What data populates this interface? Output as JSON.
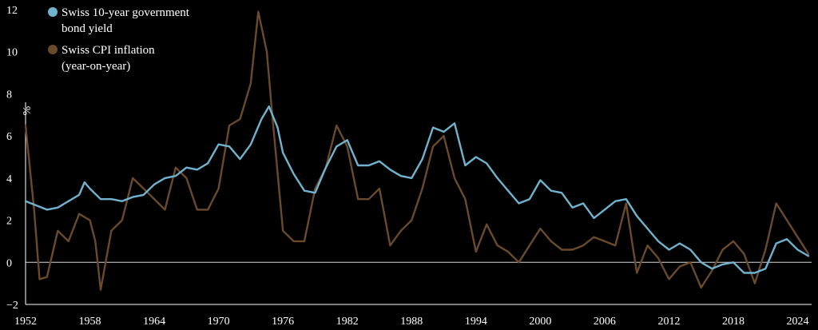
{
  "chart_data": {
    "type": "line",
    "title": "",
    "xlabel": "",
    "ylabel": "%",
    "xlim": [
      1952,
      2025.3
    ],
    "ylim": [
      -2,
      12
    ],
    "x_ticks": [
      1952,
      1958,
      1964,
      1970,
      1976,
      1982,
      1988,
      1994,
      2000,
      2006,
      2012,
      2018,
      2024
    ],
    "y_ticks": [
      -2,
      0,
      2,
      4,
      6,
      8,
      10,
      12
    ],
    "grid": false,
    "legend_position": "top-left",
    "series": [
      {
        "name_lines": [
          "Swiss 10-year government",
          "bond yield"
        ],
        "color": "#6fb3cf",
        "points": [
          [
            1952.0,
            2.9
          ],
          [
            1953.0,
            2.7
          ],
          [
            1954.0,
            2.5
          ],
          [
            1955.0,
            2.6
          ],
          [
            1956.0,
            2.9
          ],
          [
            1957.0,
            3.2
          ],
          [
            1957.5,
            3.8
          ],
          [
            1958.0,
            3.5
          ],
          [
            1959.0,
            3.0
          ],
          [
            1960.0,
            3.0
          ],
          [
            1961.0,
            2.9
          ],
          [
            1962.0,
            3.1
          ],
          [
            1963.0,
            3.2
          ],
          [
            1964.0,
            3.7
          ],
          [
            1965.0,
            4.0
          ],
          [
            1966.0,
            4.1
          ],
          [
            1967.0,
            4.5
          ],
          [
            1968.0,
            4.4
          ],
          [
            1969.0,
            4.7
          ],
          [
            1970.0,
            5.6
          ],
          [
            1971.0,
            5.5
          ],
          [
            1972.0,
            4.9
          ],
          [
            1973.0,
            5.6
          ],
          [
            1974.0,
            6.8
          ],
          [
            1974.7,
            7.4
          ],
          [
            1975.5,
            6.4
          ],
          [
            1976.0,
            5.2
          ],
          [
            1977.0,
            4.2
          ],
          [
            1978.0,
            3.4
          ],
          [
            1979.0,
            3.3
          ],
          [
            1980.0,
            4.5
          ],
          [
            1981.0,
            5.5
          ],
          [
            1982.0,
            5.8
          ],
          [
            1983.0,
            4.6
          ],
          [
            1984.0,
            4.6
          ],
          [
            1985.0,
            4.8
          ],
          [
            1986.0,
            4.4
          ],
          [
            1987.0,
            4.1
          ],
          [
            1988.0,
            4.0
          ],
          [
            1989.0,
            4.9
          ],
          [
            1990.0,
            6.4
          ],
          [
            1991.0,
            6.2
          ],
          [
            1992.0,
            6.6
          ],
          [
            1993.0,
            4.6
          ],
          [
            1994.0,
            5.0
          ],
          [
            1995.0,
            4.7
          ],
          [
            1996.0,
            4.0
          ],
          [
            1997.0,
            3.4
          ],
          [
            1998.0,
            2.8
          ],
          [
            1999.0,
            3.0
          ],
          [
            2000.0,
            3.9
          ],
          [
            2001.0,
            3.4
          ],
          [
            2002.0,
            3.3
          ],
          [
            2003.0,
            2.6
          ],
          [
            2004.0,
            2.8
          ],
          [
            2005.0,
            2.1
          ],
          [
            2006.0,
            2.5
          ],
          [
            2007.0,
            2.9
          ],
          [
            2008.0,
            3.0
          ],
          [
            2009.0,
            2.2
          ],
          [
            2010.0,
            1.6
          ],
          [
            2011.0,
            1.0
          ],
          [
            2012.0,
            0.6
          ],
          [
            2013.0,
            0.9
          ],
          [
            2014.0,
            0.6
          ],
          [
            2015.0,
            0.0
          ],
          [
            2016.0,
            -0.3
          ],
          [
            2017.0,
            -0.1
          ],
          [
            2018.0,
            0.0
          ],
          [
            2019.0,
            -0.5
          ],
          [
            2020.0,
            -0.5
          ],
          [
            2021.0,
            -0.3
          ],
          [
            2022.0,
            0.9
          ],
          [
            2023.0,
            1.1
          ],
          [
            2024.0,
            0.6
          ],
          [
            2025.0,
            0.3
          ]
        ]
      },
      {
        "name_lines": [
          "Swiss CPI inflation",
          "(year-on-year)"
        ],
        "color": "#6b4a2b",
        "points": [
          [
            1952.0,
            6.5
          ],
          [
            1952.3,
            5.0
          ],
          [
            1952.8,
            2.5
          ],
          [
            1953.3,
            -0.8
          ],
          [
            1954.0,
            -0.7
          ],
          [
            1955.0,
            1.5
          ],
          [
            1956.0,
            1.0
          ],
          [
            1957.0,
            2.3
          ],
          [
            1958.0,
            2.0
          ],
          [
            1958.5,
            1.0
          ],
          [
            1959.0,
            -1.3
          ],
          [
            1960.0,
            1.5
          ],
          [
            1961.0,
            2.0
          ],
          [
            1962.0,
            4.0
          ],
          [
            1963.0,
            3.5
          ],
          [
            1964.0,
            3.0
          ],
          [
            1965.0,
            2.5
          ],
          [
            1966.0,
            4.5
          ],
          [
            1967.0,
            4.0
          ],
          [
            1968.0,
            2.5
          ],
          [
            1969.0,
            2.5
          ],
          [
            1970.0,
            3.5
          ],
          [
            1971.0,
            6.5
          ],
          [
            1972.0,
            6.8
          ],
          [
            1973.0,
            8.5
          ],
          [
            1973.7,
            11.9
          ],
          [
            1974.5,
            10.0
          ],
          [
            1975.0,
            7.0
          ],
          [
            1976.0,
            1.5
          ],
          [
            1977.0,
            1.0
          ],
          [
            1978.0,
            1.0
          ],
          [
            1979.0,
            3.5
          ],
          [
            1980.0,
            4.5
          ],
          [
            1981.0,
            6.5
          ],
          [
            1982.0,
            5.5
          ],
          [
            1983.0,
            3.0
          ],
          [
            1984.0,
            3.0
          ],
          [
            1985.0,
            3.5
          ],
          [
            1986.0,
            0.8
          ],
          [
            1987.0,
            1.5
          ],
          [
            1988.0,
            2.0
          ],
          [
            1989.0,
            3.5
          ],
          [
            1990.0,
            5.5
          ],
          [
            1991.0,
            6.0
          ],
          [
            1992.0,
            4.0
          ],
          [
            1993.0,
            3.0
          ],
          [
            1994.0,
            0.5
          ],
          [
            1995.0,
            1.8
          ],
          [
            1996.0,
            0.8
          ],
          [
            1997.0,
            0.5
          ],
          [
            1998.0,
            0.0
          ],
          [
            1999.0,
            0.8
          ],
          [
            2000.0,
            1.6
          ],
          [
            2001.0,
            1.0
          ],
          [
            2002.0,
            0.6
          ],
          [
            2003.0,
            0.6
          ],
          [
            2004.0,
            0.8
          ],
          [
            2005.0,
            1.2
          ],
          [
            2006.0,
            1.0
          ],
          [
            2007.0,
            0.8
          ],
          [
            2008.0,
            2.8
          ],
          [
            2009.0,
            -0.5
          ],
          [
            2010.0,
            0.8
          ],
          [
            2011.0,
            0.2
          ],
          [
            2012.0,
            -0.8
          ],
          [
            2013.0,
            -0.2
          ],
          [
            2014.0,
            0.0
          ],
          [
            2015.0,
            -1.2
          ],
          [
            2016.0,
            -0.4
          ],
          [
            2017.0,
            0.6
          ],
          [
            2018.0,
            1.0
          ],
          [
            2019.0,
            0.4
          ],
          [
            2020.0,
            -1.0
          ],
          [
            2021.0,
            0.6
          ],
          [
            2022.0,
            2.8
          ],
          [
            2023.0,
            2.0
          ],
          [
            2024.0,
            1.2
          ],
          [
            2025.0,
            0.4
          ]
        ]
      }
    ]
  }
}
